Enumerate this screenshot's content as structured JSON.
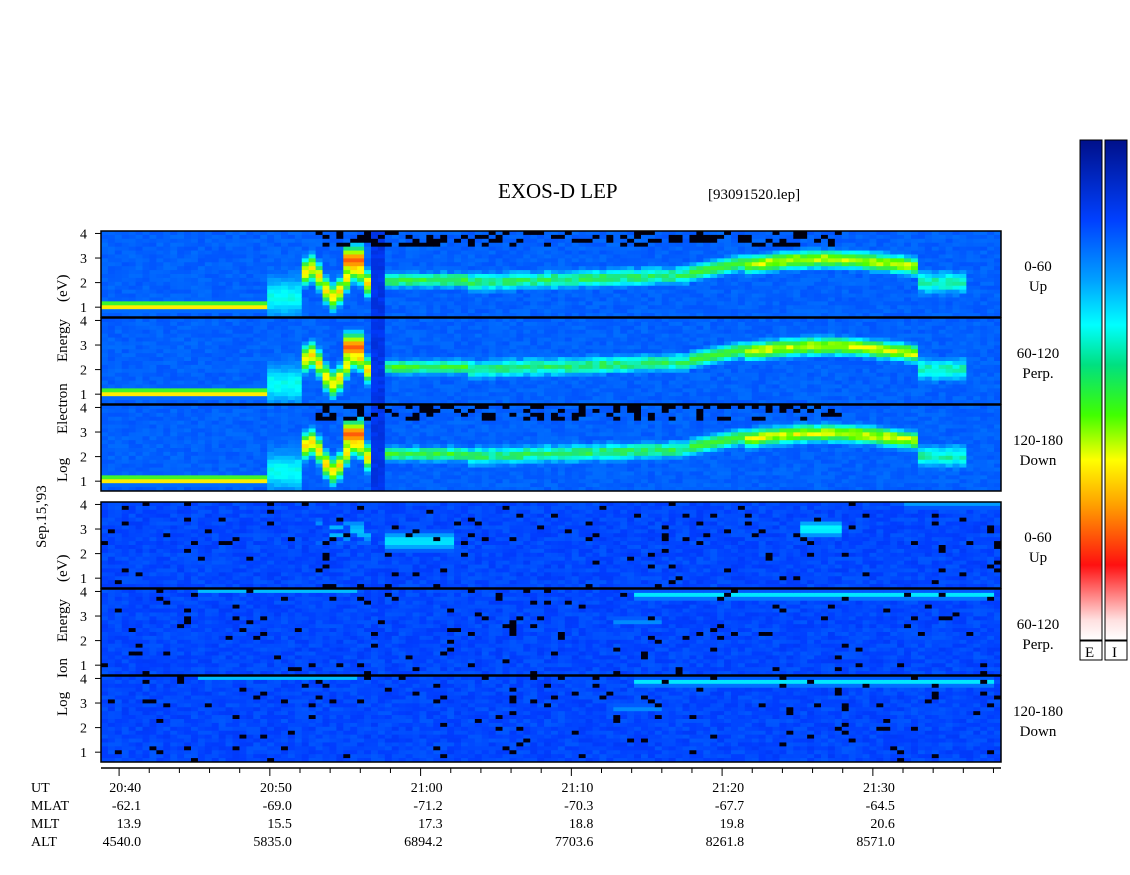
{
  "title": "EXOS-D LEP",
  "file_label": "[93091520.lep]",
  "date_label": "Sep.15,'93",
  "electron_ylabel": [
    "Log",
    "Electron",
    "Energy",
    "(eV)"
  ],
  "ion_ylabel": [
    "Log",
    "Ion",
    "Energy",
    "(eV)"
  ],
  "colorbar_labels": [
    "E",
    "I"
  ],
  "chart_data": {
    "type": "heatmap",
    "title": "EXOS-D LEP",
    "y_ticks": [
      "1",
      "2",
      "3",
      "4"
    ],
    "ylim": [
      0.6,
      4.1
    ],
    "x_ticks": [
      "20:40",
      "20:50",
      "21:00",
      "21:10",
      "21:20",
      "21:30"
    ],
    "xlim_minutes": [
      -1.2,
      58.5
    ],
    "panels": [
      {
        "group": "Electron",
        "angle": "0-60",
        "direction": "Up"
      },
      {
        "group": "Electron",
        "angle": "60-120",
        "direction": "Perp."
      },
      {
        "group": "Electron",
        "angle": "120-180",
        "direction": "Down"
      },
      {
        "group": "Ion",
        "angle": "0-60",
        "direction": "Up"
      },
      {
        "group": "Ion",
        "angle": "60-120",
        "direction": "Perp."
      },
      {
        "group": "Ion",
        "angle": "120-180",
        "direction": "Down"
      }
    ],
    "orbit_rows": [
      {
        "label": "UT",
        "values": [
          "20:40",
          "20:50",
          "21:00",
          "21:10",
          "21:20",
          "21:30"
        ]
      },
      {
        "label": "MLAT",
        "values": [
          "-62.1",
          "-69.0",
          "-71.2",
          "-70.3",
          "-67.7",
          "-64.5"
        ]
      },
      {
        "label": "MLT",
        "values": [
          "13.9",
          "15.5",
          "17.3",
          "18.8",
          "19.8",
          "20.6"
        ]
      },
      {
        "label": "ALT",
        "values": [
          "4540.0",
          "5835.0",
          "6894.2",
          "7703.6",
          "8261.8",
          "8571.0"
        ]
      }
    ]
  }
}
